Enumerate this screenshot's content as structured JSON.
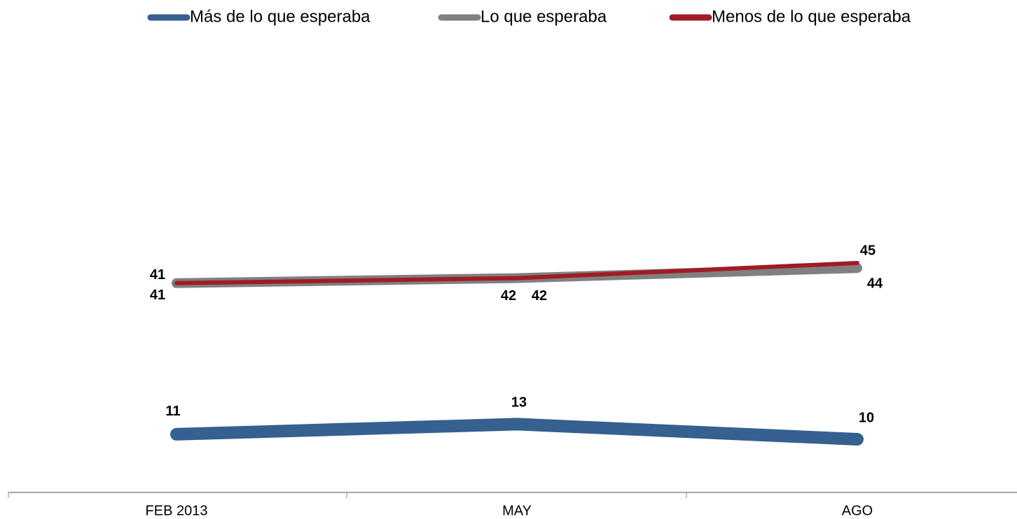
{
  "chart_data": {
    "type": "line",
    "categories": [
      "FEB 2013",
      "MAY",
      "AGO"
    ],
    "series": [
      {
        "name": "Más de lo que esperaba",
        "color": "#35608f",
        "values": [
          11,
          13,
          10
        ]
      },
      {
        "name": "Lo que esperaba",
        "color": "#808080",
        "values": [
          41,
          42,
          44
        ]
      },
      {
        "name": "Menos de lo que esperaba",
        "color": "#a01c24",
        "values": [
          41,
          42,
          45
        ]
      }
    ],
    "ylim": [
      0,
      90
    ],
    "legend": "top"
  }
}
